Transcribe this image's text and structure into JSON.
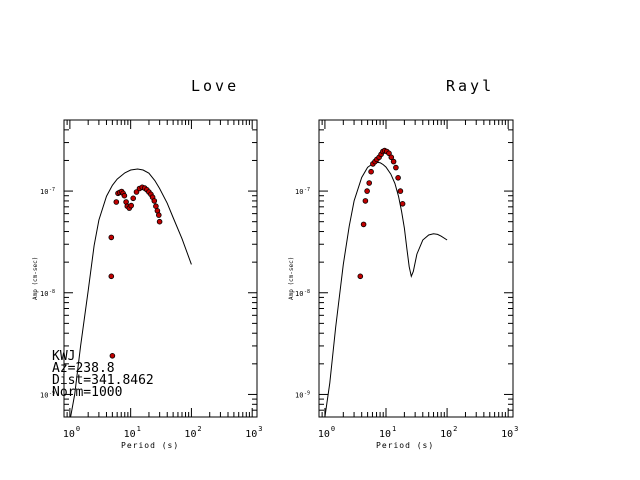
{
  "chart_data": [
    {
      "type": "scatter",
      "title": "Love",
      "xlabel": "Period (s)",
      "ylabel": "Amp (cm-sec)",
      "x_scale": "log",
      "y_scale": "log",
      "xlim": [
        0.8,
        1200
      ],
      "ylim": [
        6e-10,
        5e-07
      ],
      "x_ticks": [
        {
          "base": "10",
          "exp": "0"
        },
        {
          "base": "10",
          "exp": "1"
        },
        {
          "base": "10",
          "exp": "2"
        },
        {
          "base": "10",
          "exp": "3"
        }
      ],
      "y_ticks": [
        {
          "base": "10",
          "exp": "-9"
        },
        {
          "base": "10",
          "exp": "-8"
        },
        {
          "base": "10",
          "exp": "-7"
        }
      ],
      "annotations": [
        "KWJ",
        "Az=238.8",
        "Dist=341.8462",
        "Norm=1000"
      ],
      "series": [
        {
          "kind": "line",
          "x": [
            1.0,
            1.2,
            1.5,
            2.0,
            2.5,
            3.0,
            4.0,
            5.0,
            6.0,
            8.0,
            10.0,
            13.0,
            16.0,
            20.0,
            25.0,
            30.0,
            40.0,
            50.0,
            70.0,
            100.0
          ],
          "y": [
            5.5e-10,
            1e-09,
            3e-09,
            1.05e-08,
            2.9e-08,
            5.2e-08,
            8.9e-08,
            1.14e-07,
            1.31e-07,
            1.51e-07,
            1.61e-07,
            1.65e-07,
            1.61e-07,
            1.5e-07,
            1.27e-07,
            1.06e-07,
            7.6e-08,
            5.5e-08,
            3.4e-08,
            1.9e-08
          ]
        },
        {
          "kind": "points",
          "x": [
            4.8,
            4.8,
            5.0,
            5.8,
            6.2,
            6.6,
            7.1,
            7.5,
            7.9,
            8.4,
            8.8,
            9.5,
            10.2,
            11.0,
            12.5,
            14.0,
            15.5,
            17.0,
            18.5,
            20.0,
            21.5,
            23.0,
            24.5,
            26.0,
            27.5,
            29.0,
            30.0
          ],
          "y": [
            1.45e-08,
            3.5e-08,
            2.4e-09,
            7.8e-08,
            9.5e-08,
            9.7e-08,
            9.9e-08,
            9.5e-08,
            9e-08,
            7.8e-08,
            7.1e-08,
            6.8e-08,
            7.2e-08,
            8.5e-08,
            9.8e-08,
            1.06e-07,
            1.09e-07,
            1.07e-07,
            1.03e-07,
            9.8e-08,
            9.3e-08,
            8.7e-08,
            8e-08,
            7.1e-08,
            6.4e-08,
            5.8e-08,
            5e-08
          ]
        }
      ]
    },
    {
      "type": "scatter",
      "title": "Rayl",
      "xlabel": "Period (s)",
      "ylabel": "Amp (cm-sec)",
      "x_scale": "log",
      "y_scale": "log",
      "xlim": [
        0.8,
        1200
      ],
      "ylim": [
        6e-10,
        5e-07
      ],
      "x_ticks": [
        {
          "base": "10",
          "exp": "0"
        },
        {
          "base": "10",
          "exp": "1"
        },
        {
          "base": "10",
          "exp": "2"
        },
        {
          "base": "10",
          "exp": "3"
        }
      ],
      "y_ticks": [
        {
          "base": "10",
          "exp": "-9"
        },
        {
          "base": "10",
          "exp": "-8"
        },
        {
          "base": "10",
          "exp": "-7"
        }
      ],
      "annotations": [],
      "series": [
        {
          "kind": "line",
          "x": [
            1.0,
            1.2,
            1.5,
            2.0,
            2.5,
            3.0,
            4.0,
            5.0,
            6.0,
            7.0,
            8.0,
            9.0,
            10.0,
            12.0,
            14.0,
            16.0,
            18.0,
            20.0,
            22.0,
            24.0,
            26.0,
            28.0,
            32.0,
            40.0,
            50.0,
            60.0,
            70.0,
            80.0,
            100.0
          ],
          "y": [
            6e-10,
            1.3e-09,
            4.6e-09,
            1.9e-08,
            4.5e-08,
            8e-08,
            1.36e-07,
            1.71e-07,
            1.85e-07,
            1.92e-07,
            1.9e-07,
            1.82e-07,
            1.72e-07,
            1.47e-07,
            1.19e-07,
            8.9e-08,
            6.3e-08,
            4.3e-08,
            2.7e-08,
            1.8e-08,
            1.45e-08,
            1.62e-08,
            2.4e-08,
            3.3e-08,
            3.7e-08,
            3.8e-08,
            3.75e-08,
            3.6e-08,
            3.3e-08
          ]
        },
        {
          "kind": "points",
          "x": [
            3.8,
            4.3,
            4.6,
            4.9,
            5.3,
            5.7,
            6.1,
            6.6,
            7.1,
            7.7,
            8.3,
            8.9,
            9.5,
            10.3,
            11.2,
            12.2,
            13.3,
            14.5,
            15.8,
            17.2,
            18.7
          ],
          "y": [
            1.45e-08,
            4.7e-08,
            8e-08,
            1e-07,
            1.2e-07,
            1.55e-07,
            1.85e-07,
            1.95e-07,
            2.05e-07,
            2.15e-07,
            2.3e-07,
            2.45e-07,
            2.5e-07,
            2.45e-07,
            2.35e-07,
            2.15e-07,
            1.95e-07,
            1.7e-07,
            1.35e-07,
            1e-07,
            7.5e-08
          ]
        }
      ]
    }
  ]
}
